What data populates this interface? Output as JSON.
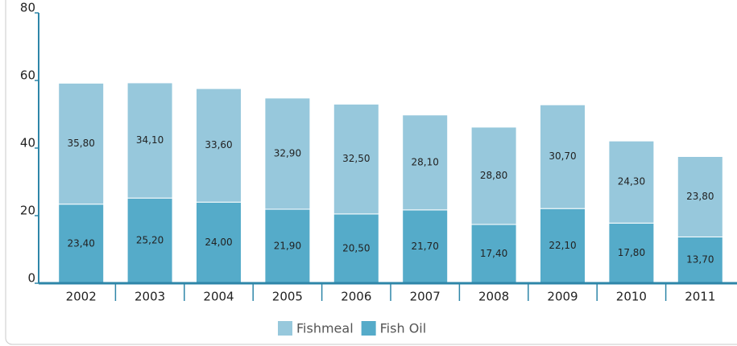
{
  "chart_data": {
    "type": "stacked_bar",
    "categories": [
      "2002",
      "2003",
      "2004",
      "2005",
      "2006",
      "2007",
      "2008",
      "2009",
      "2010",
      "2011"
    ],
    "series": [
      {
        "name": "Fishmeal",
        "color": "#97c8dc",
        "values": [
          35.8,
          34.1,
          33.6,
          32.9,
          32.5,
          28.1,
          28.8,
          30.7,
          24.3,
          23.8
        ],
        "value_labels": [
          "35,80",
          "34,10",
          "33,60",
          "32,90",
          "32,50",
          "28,10",
          "28,80",
          "30,70",
          "24,30",
          "23,80"
        ]
      },
      {
        "name": "Fish Oil",
        "color": "#55abc9",
        "values": [
          23.4,
          25.2,
          24.0,
          21.9,
          20.5,
          21.7,
          17.4,
          22.1,
          17.8,
          13.7
        ],
        "value_labels": [
          "23,40",
          "25,20",
          "24,00",
          "21,90",
          "20,50",
          "21,70",
          "17,40",
          "22,10",
          "17,80",
          "13,70"
        ]
      }
    ],
    "ylim": [
      0,
      80
    ],
    "yticks": [
      0,
      20,
      40,
      60,
      80
    ],
    "grid": false,
    "legend": "bottom"
  }
}
